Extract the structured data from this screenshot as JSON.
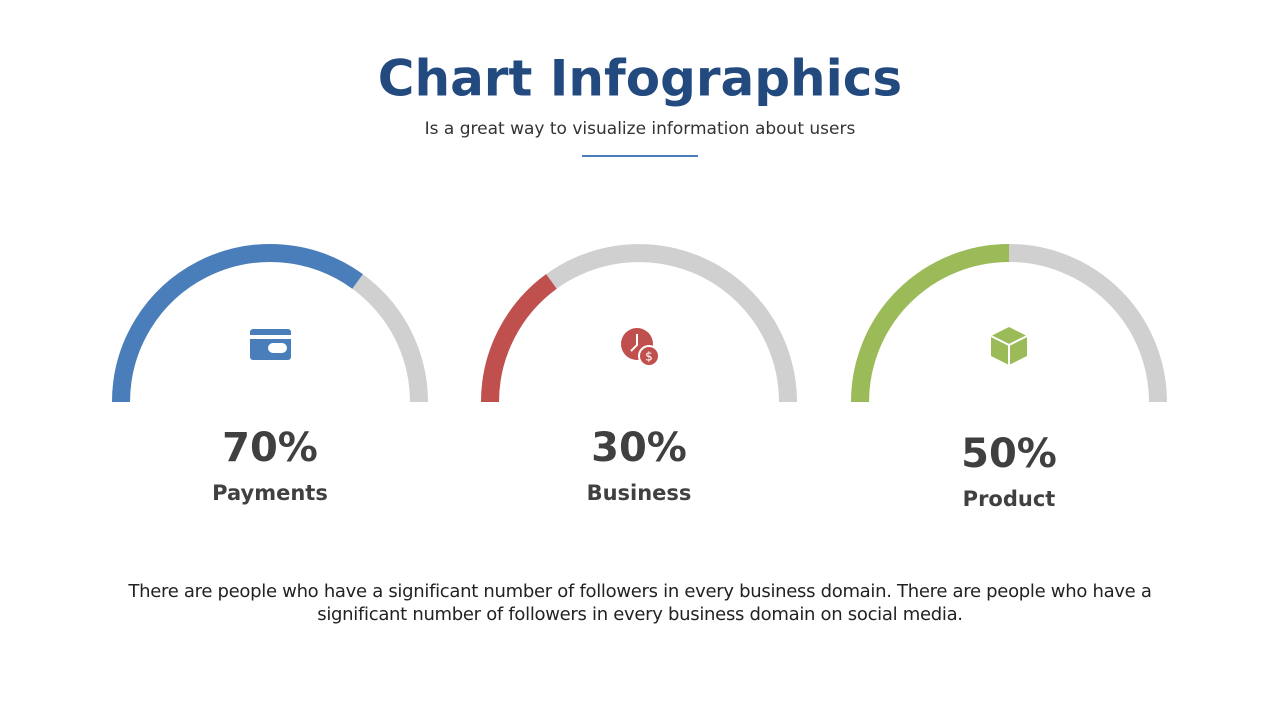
{
  "header": {
    "title": "Chart Infographics",
    "subtitle": "Is a great way to visualize information about users"
  },
  "chart_data": [
    {
      "type": "gauge",
      "categories": [
        "Payments"
      ],
      "values": [
        70
      ],
      "value_labels": [
        "70%"
      ],
      "ylim": [
        0,
        100
      ],
      "color": "#4a7ebb"
    },
    {
      "type": "gauge",
      "categories": [
        "Business"
      ],
      "values": [
        30
      ],
      "value_labels": [
        "30%"
      ],
      "ylim": [
        0,
        100
      ],
      "color": "#c0504d"
    },
    {
      "type": "gauge",
      "categories": [
        "Product"
      ],
      "values": [
        50
      ],
      "value_labels": [
        "50%"
      ],
      "ylim": [
        0,
        100
      ],
      "color": "#9bbb59"
    }
  ],
  "footer": {
    "text": "There are people who have a significant number of followers in every business domain. There are people who have a significant number of followers in every business domain on social media."
  }
}
